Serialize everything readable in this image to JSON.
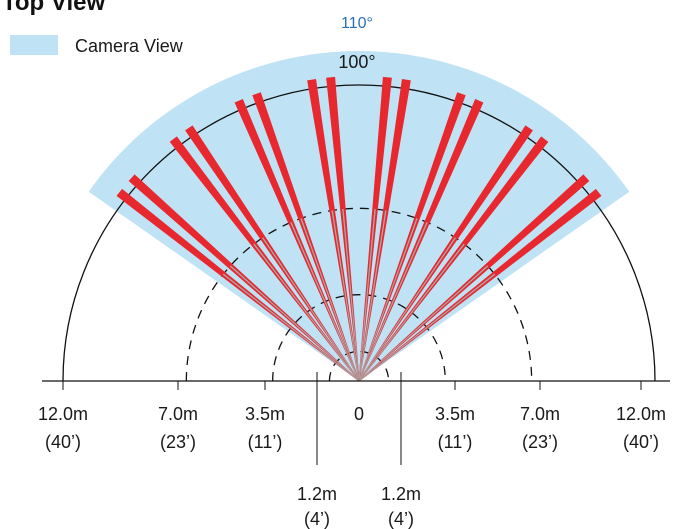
{
  "title": "Top View",
  "legend": {
    "label": "Camera View",
    "color": "#bfe3f5"
  },
  "fov": [
    {
      "label": "110°",
      "degrees": 110,
      "color": "#2a6fb5"
    },
    {
      "label": "100°",
      "degrees": 100,
      "color": "#111111"
    }
  ],
  "colors": {
    "beam": "#e8282f",
    "beam_near": "#a8a8a8",
    "arc": "#111111"
  },
  "distances": [
    {
      "key": "12m",
      "meters": 12.0,
      "label": "12.0m",
      "sub": "(40’)"
    },
    {
      "key": "7m",
      "meters": 7.0,
      "label": "7.0m",
      "sub": "(23’)"
    },
    {
      "key": "35m",
      "meters": 3.5,
      "label": "3.5m",
      "sub": "(11’)"
    },
    {
      "key": "12",
      "meters": 1.2,
      "label": "1.2m",
      "sub": "(4’)"
    }
  ],
  "origin_label": "0",
  "beam_count": 8
}
